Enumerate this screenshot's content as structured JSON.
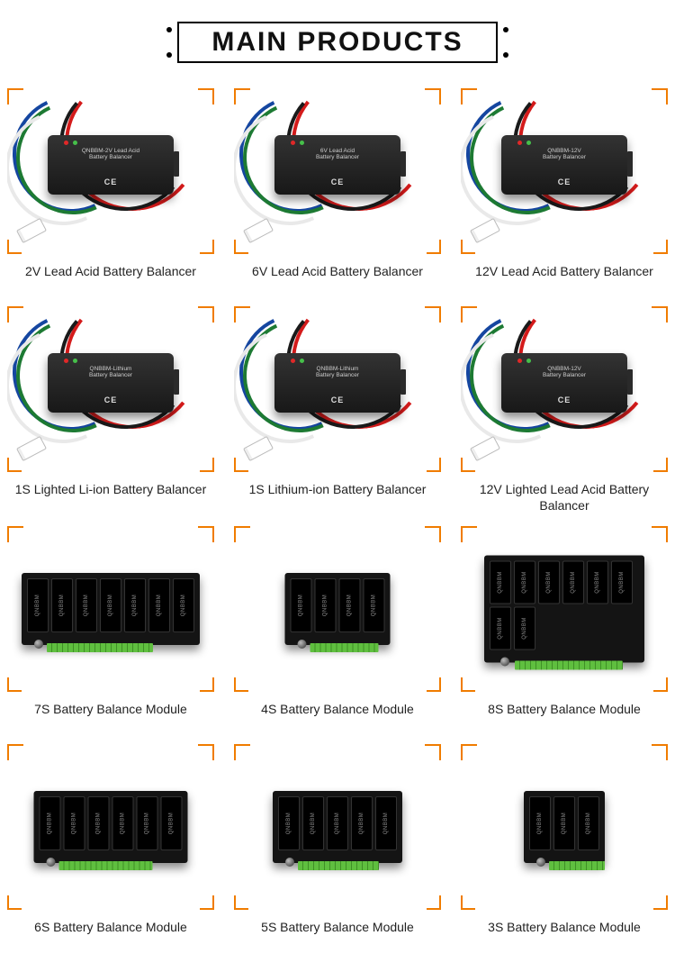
{
  "heading": "MAIN PRODUCTS",
  "colors": {
    "corner": "#f07c00",
    "text": "#222222",
    "cable_red": "#d41b1b",
    "cable_blue": "#1546a0",
    "cable_green": "#1d7a33",
    "cable_black": "#1a1a1a",
    "terminal_green": "#5fbf3f"
  },
  "products": [
    {
      "caption": "2V Lead Acid Battery Balancer",
      "type": "box",
      "box_label": "QNBBM-2V Lead Acid\\nBattery Balancer"
    },
    {
      "caption": "6V Lead Acid Battery Balancer",
      "type": "box",
      "box_label": "6V Lead Acid\\nBattery Balancer"
    },
    {
      "caption": "12V Lead Acid Battery Balancer",
      "type": "box",
      "box_label": "QNBBM-12V\\nBattery Balancer"
    },
    {
      "caption": "1S Lighted Li-ion Battery Balancer",
      "type": "box",
      "box_label": "QNBBM-Lithium\\nBattery Balancer"
    },
    {
      "caption": "1S Lithium-ion Battery Balancer",
      "type": "box",
      "box_label": "QNBBM-Lithium\\nBattery Balancer"
    },
    {
      "caption": "12V Lighted  Lead Acid Battery Balancer",
      "type": "box",
      "box_label": "QNBBM-12V\\nBattery Balancer"
    },
    {
      "caption": "7S Battery Balance Module",
      "type": "board",
      "cells": 7,
      "rows": 1
    },
    {
      "caption": "4S Battery Balance Module",
      "type": "board",
      "cells": 4,
      "rows": 1
    },
    {
      "caption": "8S Battery Balance Module",
      "type": "board",
      "cells": 8,
      "rows": 2
    },
    {
      "caption": "6S Battery Balance Module",
      "type": "board",
      "cells": 6,
      "rows": 1
    },
    {
      "caption": "5S Battery Balance Module",
      "type": "board",
      "cells": 5,
      "rows": 1
    },
    {
      "caption": "3S Battery Balance Module",
      "type": "board",
      "cells": 3,
      "rows": 1
    }
  ],
  "board_brand": "QNBBM",
  "ce_mark": "CE"
}
